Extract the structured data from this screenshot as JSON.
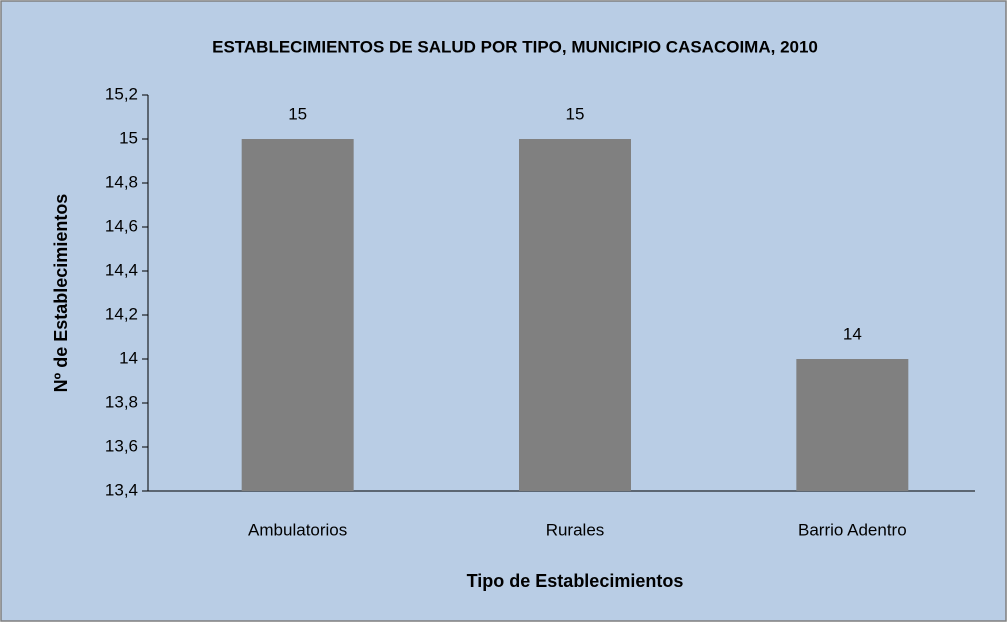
{
  "chart_data": {
    "type": "bar",
    "title": "ESTABLECIMIENTOS DE SALUD POR TIPO, MUNICIPIO CASACOIMA, 2010",
    "x_label": "Tipo de Establecimientos",
    "y_label": "Nº de Establecimientos",
    "categories": [
      "Ambulatorios",
      "Rurales",
      "Barrio Adentro"
    ],
    "values": [
      15,
      15,
      14
    ],
    "color": "#808080",
    "ylim": [
      13.4,
      15.2
    ],
    "yticks": [
      {
        "value": 13.4,
        "label": "13,4"
      },
      {
        "value": 13.6,
        "label": "13,6"
      },
      {
        "value": 13.8,
        "label": "13,8"
      },
      14,
      {
        "value": 14.2,
        "label": "14,2"
      },
      {
        "value": 14.4,
        "label": "14,4"
      },
      {
        "value": 14.6,
        "label": "14,6"
      },
      {
        "value": 14.8,
        "label": "14,8"
      },
      15,
      {
        "value": 15.2,
        "label": "15,2"
      }
    ],
    "grid": false
  }
}
